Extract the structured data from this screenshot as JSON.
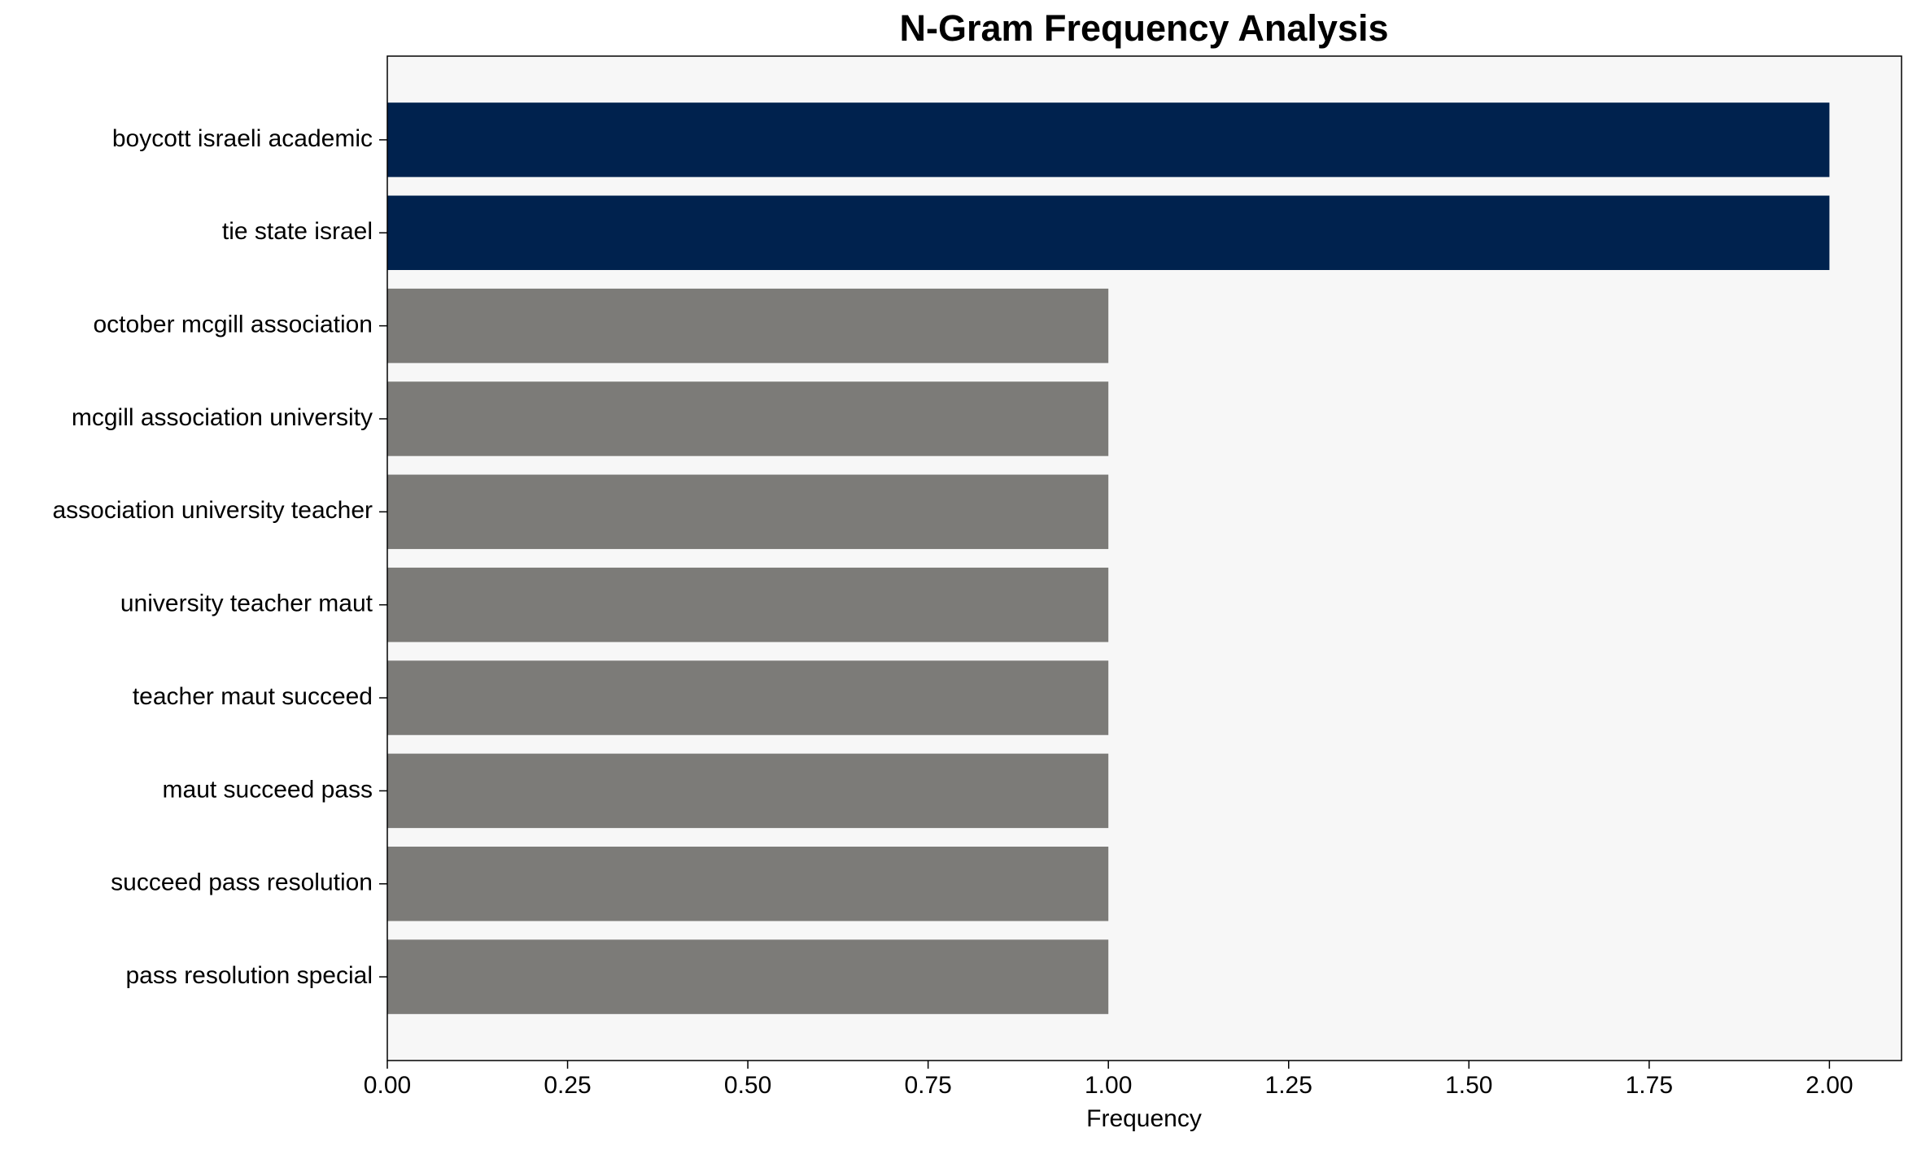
{
  "chart_data": {
    "type": "barh",
    "title": "N-Gram Frequency Analysis",
    "xlabel": "Frequency",
    "categories": [
      "boycott israeli academic",
      "tie state israel",
      "october mcgill association",
      "mcgill association university",
      "association university teacher",
      "university teacher maut",
      "teacher maut succeed",
      "maut succeed pass",
      "succeed pass resolution",
      "pass resolution special"
    ],
    "values": [
      2,
      2,
      1,
      1,
      1,
      1,
      1,
      1,
      1,
      1
    ],
    "colors": [
      "#00224e",
      "#00224e",
      "#7c7b78",
      "#7c7b78",
      "#7c7b78",
      "#7c7b78",
      "#7c7b78",
      "#7c7b78",
      "#7c7b78",
      "#7c7b78"
    ],
    "xlim": [
      0,
      2.1
    ],
    "xticks": [
      {
        "value": 0,
        "label": "0.00"
      },
      0.25,
      {
        "value": 0.5,
        "label": "0.50"
      },
      0.75,
      {
        "value": 1,
        "label": "1.00"
      },
      1.25,
      {
        "value": 1.5,
        "label": "1.50"
      },
      1.75,
      {
        "value": 2,
        "label": "2.00"
      }
    ],
    "grid": false
  }
}
